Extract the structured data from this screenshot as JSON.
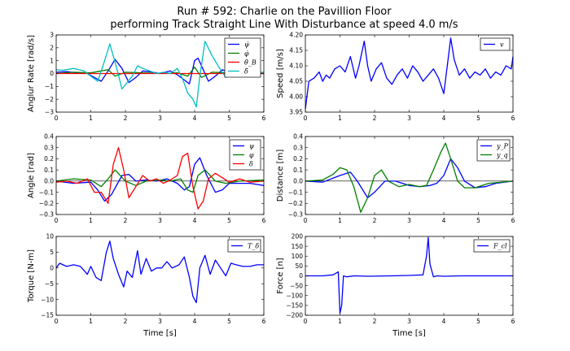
{
  "figure": {
    "title_line1": "Run # 592: Charlie on the Pavillion Floor",
    "title_line2": "performing Track Straight Line With Disturbance at speed 4.0 m/s"
  },
  "colors": {
    "blue": "#0000ff",
    "green": "#007f00",
    "red": "#ff0000",
    "cyan": "#00bfbf"
  },
  "chart_data": [
    {
      "id": "p1",
      "type": "line",
      "xlabel": "",
      "ylabel": "Anglur Rate [rad/s]",
      "xlim": [
        0,
        6
      ],
      "ylim": [
        -3,
        3
      ],
      "xticks": [
        "0",
        "1",
        "2",
        "3",
        "4",
        "5",
        "6"
      ],
      "yticks": [
        "−3",
        "−2",
        "−1",
        "0",
        "1",
        "2",
        "3"
      ],
      "legend": "top-right",
      "zero_line": true,
      "series": [
        {
          "name": "ψ̇",
          "color": "#0000ff",
          "x": [
            0,
            0.3,
            0.6,
            0.9,
            1.1,
            1.3,
            1.5,
            1.7,
            1.9,
            2.1,
            2.3,
            2.5,
            2.8,
            3.0,
            3.3,
            3.5,
            3.7,
            3.85,
            4.0,
            4.1,
            4.25,
            4.4,
            4.6,
            4.8,
            5.0,
            5.3,
            5.6,
            6.0
          ],
          "y": [
            0.1,
            0.15,
            0.05,
            0,
            -0.3,
            -0.6,
            0.2,
            1.1,
            0.4,
            -0.7,
            -0.3,
            0.2,
            0.1,
            0,
            0.2,
            -0.1,
            -0.5,
            -0.8,
            1.0,
            1.2,
            0.3,
            -0.6,
            -0.2,
            0.3,
            0.1,
            -0.1,
            0.05,
            0
          ]
        },
        {
          "name": "φ̇",
          "color": "#007f00",
          "x": [
            0,
            0.5,
            1.0,
            1.3,
            1.5,
            1.7,
            2.0,
            2.5,
            3.0,
            3.5,
            3.8,
            4.0,
            4.2,
            4.5,
            5.0,
            5.5,
            6.0
          ],
          "y": [
            0,
            0.1,
            0.05,
            0.2,
            0.3,
            -0.2,
            0.1,
            0.05,
            0,
            0.05,
            -0.2,
            0.5,
            -0.3,
            0.1,
            0.05,
            0,
            0
          ],
          "width": 1.0
        },
        {
          "name": "θ̇_B",
          "color": "#ff0000",
          "x": [
            0,
            1,
            2,
            3,
            4,
            5,
            6
          ],
          "y": [
            0,
            0,
            0,
            0,
            0,
            0,
            0
          ],
          "width": 1.0
        },
        {
          "name": "δ̇",
          "color": "#00bfbf",
          "x": [
            0,
            0.2,
            0.5,
            0.8,
            1.0,
            1.2,
            1.4,
            1.55,
            1.75,
            1.9,
            2.05,
            2.2,
            2.35,
            2.5,
            2.7,
            2.9,
            3.1,
            3.3,
            3.5,
            3.65,
            3.8,
            3.95,
            4.05,
            4.15,
            4.3,
            4.5,
            4.7,
            4.9,
            5.1,
            5.3,
            5.6,
            6.0
          ],
          "y": [
            0.3,
            0.25,
            0.4,
            0.2,
            -0.2,
            -0.6,
            1.0,
            2.3,
            0.4,
            -1.2,
            -0.7,
            -0.2,
            0.6,
            0.4,
            0.2,
            0,
            0.1,
            0,
            0.4,
            -0.4,
            -1.5,
            -2.0,
            -2.6,
            -0.2,
            2.5,
            1.4,
            0.5,
            -0.3,
            0.1,
            0.2,
            0.05,
            0.1
          ]
        }
      ]
    },
    {
      "id": "p2",
      "type": "line",
      "xlabel": "",
      "ylabel": "Speed [m/s]",
      "xlim": [
        0,
        6
      ],
      "ylim": [
        3.95,
        4.2
      ],
      "xticks": [
        "0",
        "1",
        "2",
        "3",
        "4",
        "5",
        "6"
      ],
      "yticks": [
        "3.95",
        "4.00",
        "4.05",
        "4.10",
        "4.15",
        "4.20"
      ],
      "legend": "top-right",
      "zero_line": false,
      "series": [
        {
          "name": "v",
          "color": "#0000ff",
          "x": [
            0,
            0.1,
            0.25,
            0.4,
            0.5,
            0.6,
            0.7,
            0.85,
            1.0,
            1.15,
            1.3,
            1.45,
            1.55,
            1.7,
            1.8,
            1.9,
            2.05,
            2.2,
            2.35,
            2.5,
            2.65,
            2.8,
            2.95,
            3.1,
            3.25,
            3.4,
            3.55,
            3.7,
            3.85,
            4.0,
            4.1,
            4.2,
            4.3,
            4.45,
            4.6,
            4.75,
            4.9,
            5.05,
            5.2,
            5.35,
            5.5,
            5.65,
            5.8,
            5.95,
            6.0
          ],
          "y": [
            3.96,
            4.05,
            4.06,
            4.08,
            4.05,
            4.07,
            4.06,
            4.09,
            4.1,
            4.08,
            4.13,
            4.06,
            4.1,
            4.18,
            4.1,
            4.05,
            4.09,
            4.11,
            4.06,
            4.04,
            4.07,
            4.09,
            4.06,
            4.1,
            4.08,
            4.05,
            4.07,
            4.09,
            4.06,
            4.01,
            4.1,
            4.19,
            4.12,
            4.07,
            4.09,
            4.06,
            4.08,
            4.07,
            4.09,
            4.06,
            4.08,
            4.07,
            4.1,
            4.09,
            4.13
          ]
        }
      ]
    },
    {
      "id": "p3",
      "type": "line",
      "xlabel": "",
      "ylabel": "Angle [rad]",
      "xlim": [
        0,
        6
      ],
      "ylim": [
        -0.3,
        0.4
      ],
      "xticks": [
        "0",
        "1",
        "2",
        "3",
        "4",
        "5",
        "6"
      ],
      "yticks": [
        "−0.3",
        "−0.2",
        "−0.1",
        "0.0",
        "0.1",
        "0.2",
        "0.3",
        "0.4"
      ],
      "legend": "top-right",
      "zero_line": true,
      "series": [
        {
          "name": "ψ",
          "color": "#0000ff",
          "x": [
            0,
            0.5,
            1.0,
            1.2,
            1.4,
            1.6,
            1.9,
            2.1,
            2.3,
            2.6,
            2.9,
            3.2,
            3.5,
            3.7,
            3.85,
            4.0,
            4.15,
            4.35,
            4.6,
            4.8,
            5.0,
            5.3,
            5.6,
            6.0
          ],
          "y": [
            0,
            -0.02,
            -0.01,
            -0.08,
            -0.18,
            -0.12,
            0.05,
            0.06,
            0.0,
            0.01,
            0.0,
            0.02,
            -0.02,
            -0.08,
            -0.05,
            0.15,
            0.21,
            0.05,
            -0.1,
            -0.08,
            -0.02,
            -0.02,
            -0.02,
            -0.04
          ]
        },
        {
          "name": "φ",
          "color": "#007f00",
          "x": [
            0,
            0.5,
            1.0,
            1.3,
            1.5,
            1.7,
            2.0,
            2.3,
            2.6,
            3.0,
            3.3,
            3.6,
            3.8,
            3.95,
            4.1,
            4.3,
            4.6,
            4.9,
            5.3,
            6.0
          ],
          "y": [
            0,
            0.02,
            0.01,
            -0.05,
            0.02,
            0.1,
            0.0,
            -0.04,
            0.0,
            0.01,
            0.0,
            0.02,
            -0.08,
            -0.1,
            0.05,
            0.1,
            0.0,
            -0.02,
            0.0,
            0.01
          ]
        },
        {
          "name": "δ",
          "color": "#ff0000",
          "x": [
            0,
            0.3,
            0.6,
            0.9,
            1.1,
            1.3,
            1.5,
            1.65,
            1.8,
            1.95,
            2.1,
            2.3,
            2.5,
            2.7,
            2.9,
            3.1,
            3.3,
            3.5,
            3.65,
            3.8,
            3.95,
            4.1,
            4.25,
            4.4,
            4.6,
            4.8,
            5.0,
            5.3,
            5.6,
            6.0
          ],
          "y": [
            -0.01,
            0.0,
            -0.02,
            0.02,
            -0.1,
            -0.1,
            -0.2,
            0.15,
            0.3,
            0.1,
            -0.15,
            -0.05,
            0.05,
            0.0,
            0.02,
            -0.02,
            0.01,
            0.05,
            0.22,
            0.25,
            -0.05,
            -0.25,
            -0.18,
            0.02,
            0.07,
            0.03,
            -0.01,
            0.02,
            -0.01,
            0.0
          ]
        }
      ]
    },
    {
      "id": "p4",
      "type": "line",
      "xlabel": "",
      "ylabel": "Distance [m]",
      "xlim": [
        0,
        6
      ],
      "ylim": [
        -0.3,
        0.4
      ],
      "xticks": [
        "0",
        "1",
        "2",
        "3",
        "4",
        "5",
        "6"
      ],
      "yticks": [
        "−0.3",
        "−0.2",
        "−0.1",
        "0.0",
        "0.1",
        "0.2",
        "0.3",
        "0.4"
      ],
      "legend": "top-right",
      "zero_line": true,
      "series": [
        {
          "name": "y_P",
          "color": "#0000ff",
          "x": [
            0,
            0.5,
            1.0,
            1.3,
            1.5,
            1.8,
            2.0,
            2.3,
            2.6,
            3.0,
            3.3,
            3.6,
            3.8,
            4.0,
            4.2,
            4.4,
            4.6,
            4.9,
            5.2,
            5.5,
            6.0
          ],
          "y": [
            0,
            -0.01,
            0.05,
            0.08,
            0.0,
            -0.15,
            -0.1,
            0.0,
            0.0,
            -0.04,
            -0.05,
            -0.04,
            -0.02,
            0.05,
            0.2,
            0.12,
            0.0,
            -0.06,
            -0.05,
            -0.02,
            0.0
          ]
        },
        {
          "name": "y_q",
          "color": "#007f00",
          "x": [
            0,
            0.5,
            0.8,
            1.0,
            1.2,
            1.4,
            1.6,
            1.8,
            2.0,
            2.2,
            2.4,
            2.7,
            3.0,
            3.3,
            3.5,
            3.7,
            3.9,
            4.05,
            4.2,
            4.4,
            4.6,
            4.9,
            5.3,
            6.0
          ],
          "y": [
            0,
            0.01,
            0.06,
            0.12,
            0.1,
            -0.05,
            -0.28,
            -0.15,
            0.05,
            0.1,
            0.0,
            -0.05,
            -0.03,
            -0.05,
            -0.04,
            0.1,
            0.25,
            0.34,
            0.2,
            0.0,
            -0.06,
            -0.06,
            -0.02,
            0.0
          ]
        }
      ]
    },
    {
      "id": "p5",
      "type": "line",
      "xlabel": "Time [s]",
      "ylabel": "Torque [N-m]",
      "xlim": [
        0,
        6
      ],
      "ylim": [
        -15,
        10
      ],
      "xticks": [
        "0",
        "1",
        "2",
        "3",
        "4",
        "5",
        "6"
      ],
      "yticks": [
        "−15",
        "−10",
        "−5",
        "0",
        "5",
        "10"
      ],
      "legend": "top-right",
      "zero_line": false,
      "series": [
        {
          "name": "T_δ",
          "color": "#0000ff",
          "x": [
            0,
            0.1,
            0.3,
            0.5,
            0.7,
            0.9,
            1.0,
            1.15,
            1.3,
            1.45,
            1.55,
            1.65,
            1.8,
            1.95,
            2.05,
            2.2,
            2.35,
            2.45,
            2.6,
            2.75,
            2.9,
            3.05,
            3.2,
            3.35,
            3.55,
            3.7,
            3.85,
            3.95,
            4.05,
            4.15,
            4.3,
            4.45,
            4.6,
            4.75,
            4.9,
            5.05,
            5.2,
            5.4,
            5.6,
            5.8,
            6.0
          ],
          "y": [
            0,
            1.5,
            0.5,
            1,
            0.5,
            -2,
            0.5,
            -3,
            -4,
            5,
            8.5,
            3,
            -2,
            -6,
            -1,
            -3,
            5.5,
            -2,
            3,
            -1,
            0,
            0,
            2,
            0,
            1,
            3.5,
            -3,
            -9,
            -11,
            0,
            4,
            -2,
            2.5,
            0,
            -2.5,
            1.5,
            1,
            0.5,
            0.5,
            1,
            1
          ]
        }
      ]
    },
    {
      "id": "p6",
      "type": "line",
      "xlabel": "Time [s]",
      "ylabel": "Force [n]",
      "xlim": [
        0,
        6
      ],
      "ylim": [
        -200,
        200
      ],
      "xticks": [
        "0",
        "1",
        "2",
        "3",
        "4",
        "5",
        "6"
      ],
      "yticks": [
        "−200",
        "−150",
        "−100",
        "−50",
        "0",
        "50",
        "100",
        "150",
        "200"
      ],
      "legend": "top-right",
      "zero_line": false,
      "series": [
        {
          "name": "F_cl",
          "color": "#0000ff",
          "x": [
            0,
            0.5,
            0.8,
            0.95,
            1.0,
            1.05,
            1.1,
            1.2,
            1.4,
            1.8,
            2.5,
            3.0,
            3.4,
            3.5,
            3.55,
            3.6,
            3.7,
            3.8,
            4.0,
            4.5,
            5.0,
            5.5,
            6.0
          ],
          "y": [
            0,
            0,
            5,
            20,
            -190,
            -150,
            0,
            -5,
            0,
            -2,
            0,
            2,
            5,
            100,
            195,
            60,
            -5,
            0,
            -2,
            0,
            0,
            0,
            0
          ]
        }
      ]
    }
  ]
}
